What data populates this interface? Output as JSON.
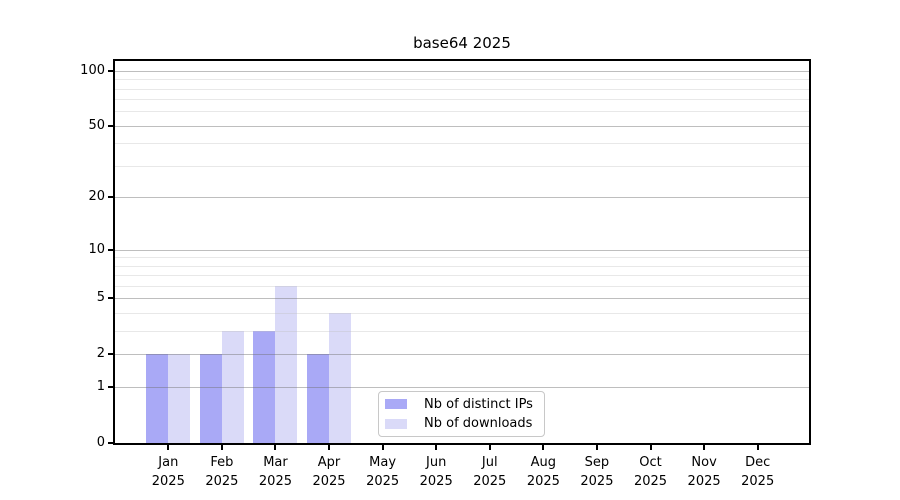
{
  "chart_data": {
    "type": "bar",
    "title": "base64 2025",
    "categories": [
      "Jan 2025",
      "Feb 2025",
      "Mar 2025",
      "Apr 2025",
      "May 2025",
      "Jun 2025",
      "Jul 2025",
      "Aug 2025",
      "Sep 2025",
      "Oct 2025",
      "Nov 2025",
      "Dec 2025"
    ],
    "series": [
      {
        "name": "Nb of distinct IPs",
        "color": "#a9a9f6",
        "values": [
          2,
          2,
          3,
          2,
          0,
          0,
          0,
          0,
          0,
          0,
          0,
          0
        ]
      },
      {
        "name": "Nb of downloads",
        "color": "#dadaf8",
        "values": [
          2,
          3,
          6,
          4,
          0,
          0,
          0,
          0,
          0,
          0,
          0,
          0
        ]
      }
    ],
    "xlabel": "",
    "ylabel": "",
    "yscale": "log1p",
    "ylim": [
      0,
      113
    ],
    "y_major_ticks": [
      0,
      1,
      2,
      5,
      10,
      20,
      50,
      100
    ],
    "y_minor_gridlines": [
      3,
      4,
      6,
      7,
      8,
      9,
      30,
      40,
      60,
      70,
      80,
      90
    ],
    "grid": true,
    "legend_position": "lower center, inside plot"
  }
}
